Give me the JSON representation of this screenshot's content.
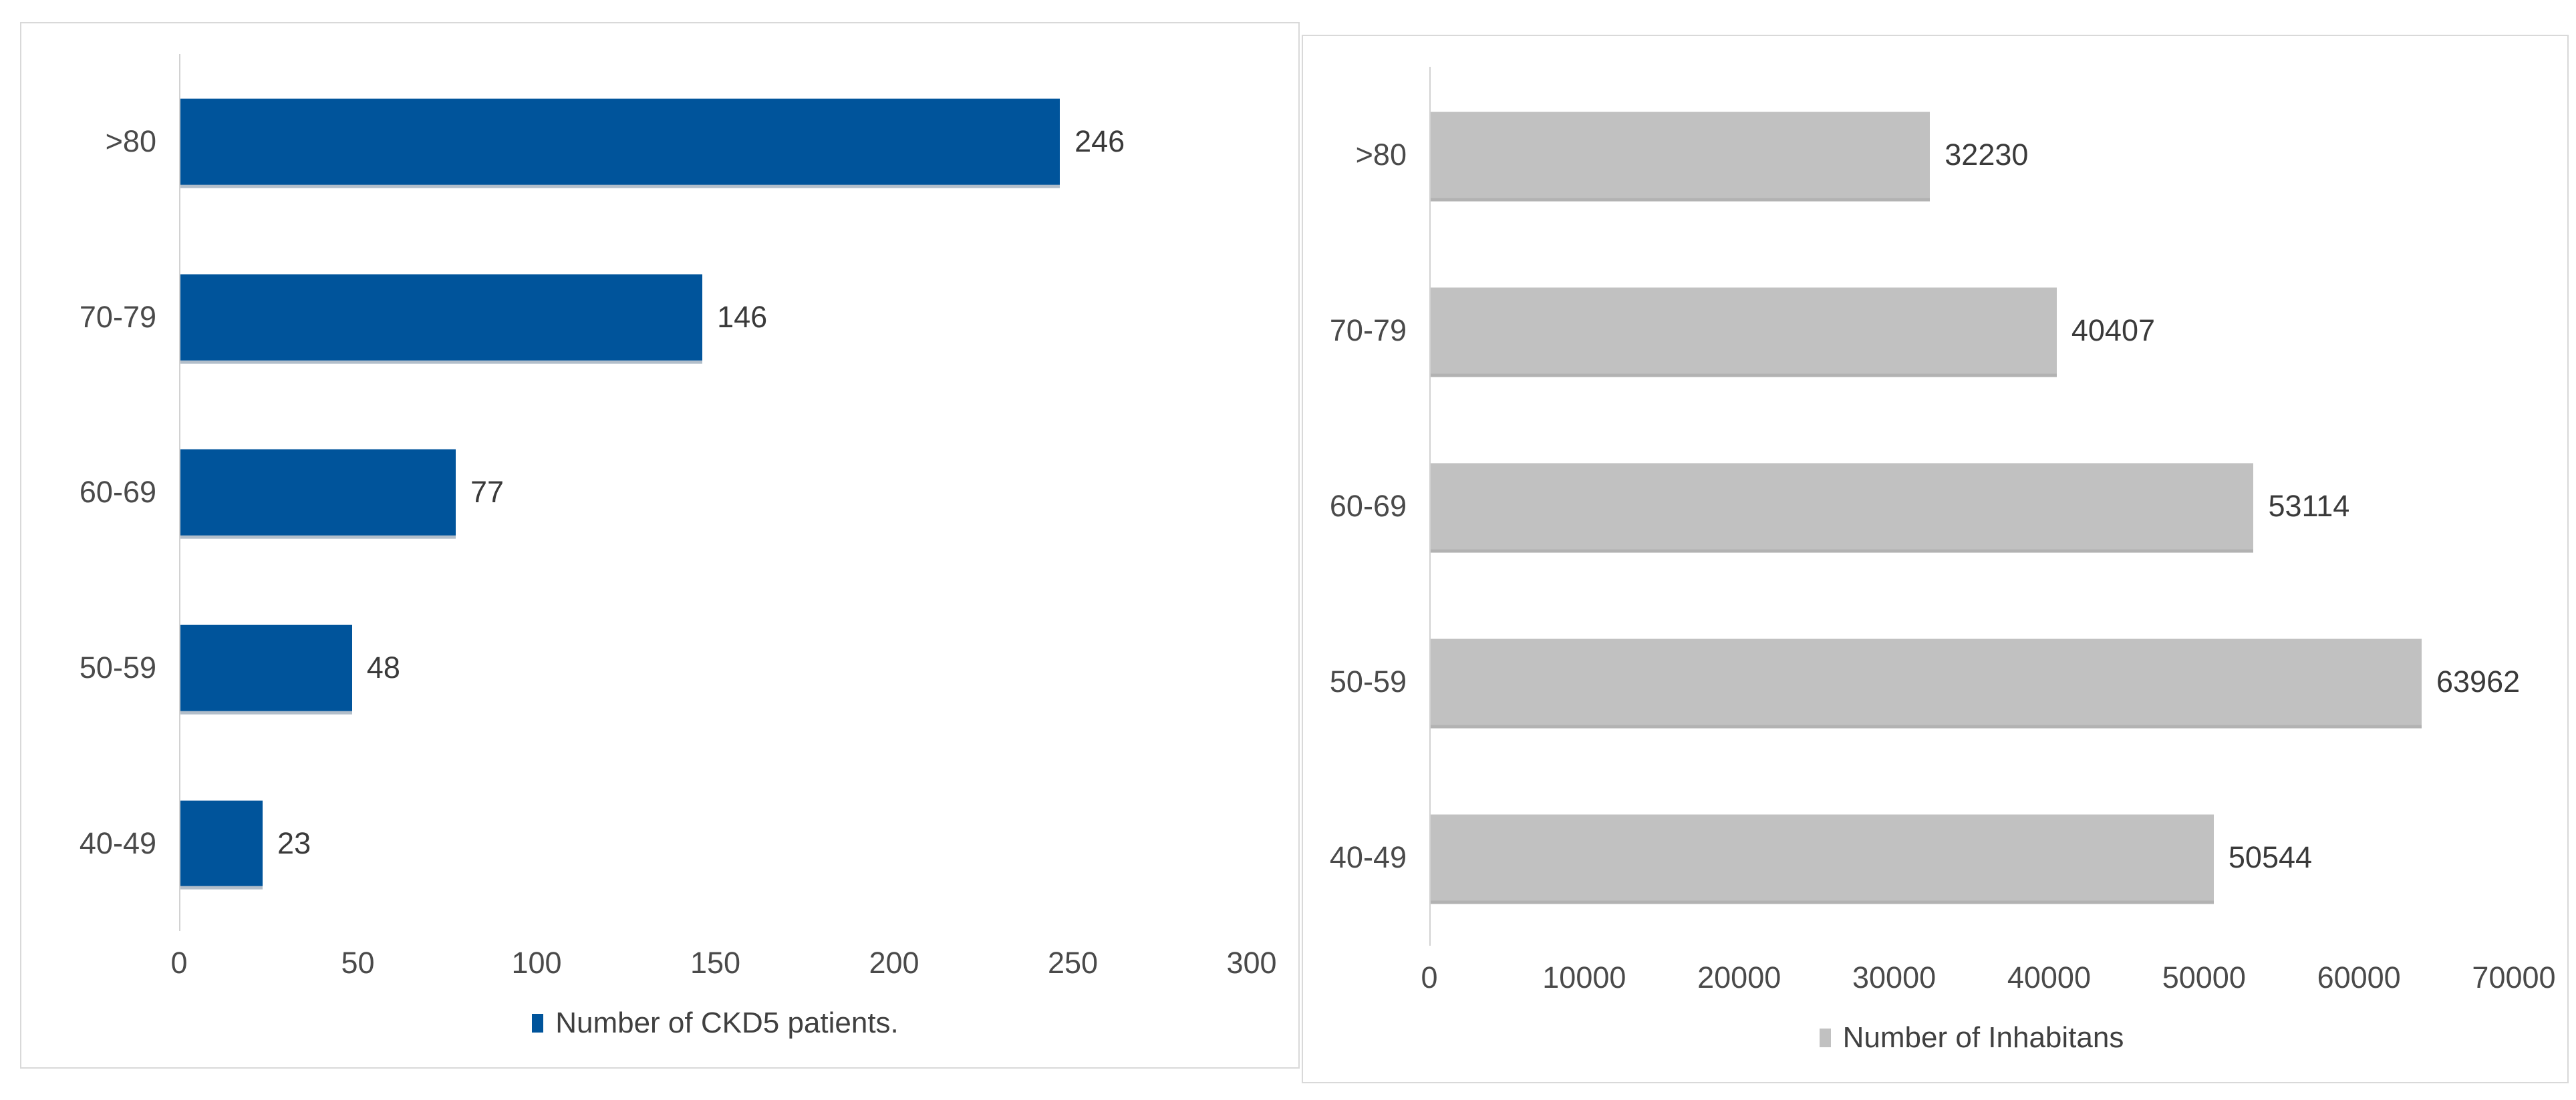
{
  "colors": {
    "ckd5_bar": "#00549B",
    "ckd5_bar_shadow": "rgba(0,40,80,0.30)",
    "inhabitants_bar": "#C1C1C1",
    "inhabitants_bar_shadow": "rgba(0,0,0,0.30)",
    "axis_line": "#D2D2D2",
    "panel_border": "#D9D9D9",
    "label_text": "#4A4A4A",
    "value_text": "#3A3A3A"
  },
  "chart_data": [
    {
      "type": "bar",
      "orientation": "horizontal",
      "title": "",
      "xlabel": "",
      "ylabel": "",
      "categories": [
        ">80",
        "70-79",
        "60-69",
        "50-59",
        "40-49"
      ],
      "values": [
        246,
        146,
        77,
        48,
        23
      ],
      "xlim": [
        0,
        300
      ],
      "xticks": [
        0,
        50,
        100,
        150,
        200,
        250,
        300
      ],
      "grid": false,
      "legend": "Number of CKD5 patients.",
      "legend_position": "bottom",
      "bar_color": "#00549B",
      "bar_shadow_color": "rgba(0,40,80,0.30)"
    },
    {
      "type": "bar",
      "orientation": "horizontal",
      "title": "",
      "xlabel": "",
      "ylabel": "",
      "categories": [
        ">80",
        "70-79",
        "60-69",
        "50-59",
        "40-49"
      ],
      "values": [
        32230,
        40407,
        53114,
        63962,
        50544
      ],
      "xlim": [
        0,
        70000
      ],
      "xticks": [
        0,
        10000,
        20000,
        30000,
        40000,
        50000,
        60000,
        70000
      ],
      "grid": false,
      "legend": "Number of Inhabitans",
      "legend_position": "bottom",
      "bar_color": "#C1C1C1",
      "bar_shadow_color": "rgba(0,0,0,0.30)"
    }
  ]
}
